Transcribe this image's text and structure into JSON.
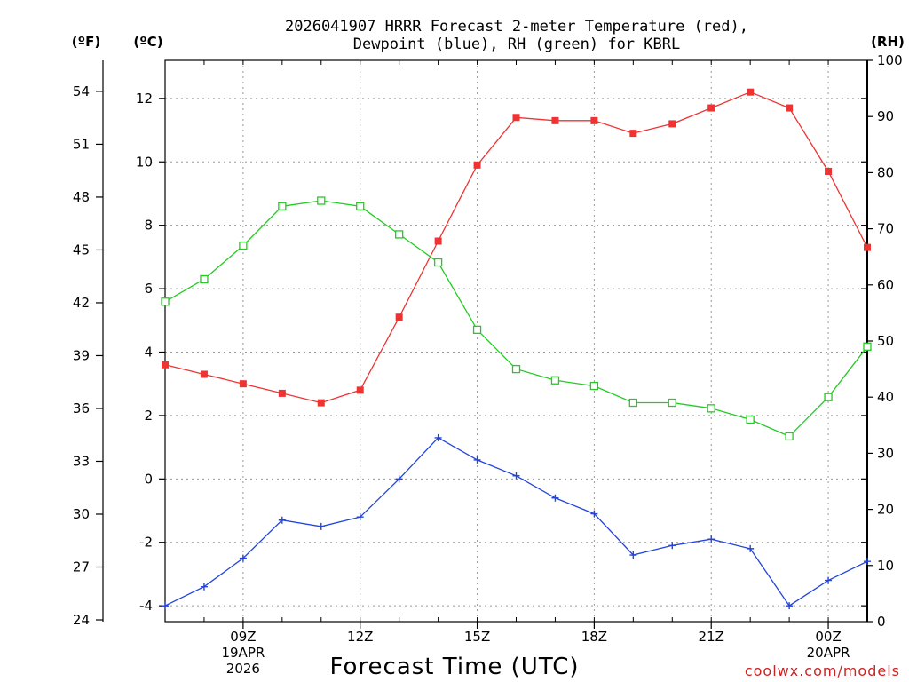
{
  "chart_data": {
    "type": "line",
    "title_line1": "2026041907 HRRR Forecast 2-meter Temperature (red),",
    "title_line2": "Dewpoint (blue), RH (green) for KBRL",
    "xlabel": "Forecast Time (UTC)",
    "credit": "coolwx.com/models",
    "units": {
      "fahrenheit": "(ºF)",
      "celsius": "(ºC)",
      "rh": "(RH)"
    },
    "x_hours": [
      7,
      8,
      9,
      10,
      11,
      12,
      13,
      14,
      15,
      16,
      17,
      18,
      19,
      20,
      21,
      22,
      23,
      24,
      25
    ],
    "x_range": [
      7,
      25
    ],
    "y_celsius_range": [
      -4.5,
      13.2
    ],
    "y_rh_range": [
      0,
      100
    ],
    "x_ticks": [
      {
        "hour": 9,
        "lines": [
          "09Z",
          "19APR",
          "2026"
        ]
      },
      {
        "hour": 12,
        "lines": [
          "12Z"
        ]
      },
      {
        "hour": 15,
        "lines": [
          "15Z"
        ]
      },
      {
        "hour": 18,
        "lines": [
          "18Z"
        ]
      },
      {
        "hour": 21,
        "lines": [
          "21Z"
        ]
      },
      {
        "hour": 24,
        "lines": [
          "00Z",
          "20APR"
        ]
      }
    ],
    "celsius_ticks": [
      "-4",
      "-2",
      "0",
      "2",
      "4",
      "6",
      "8",
      "10",
      "12"
    ],
    "fahrenheit_ticks": [
      "24",
      "27",
      "30",
      "33",
      "36",
      "39",
      "42",
      "45",
      "48",
      "51",
      "54"
    ],
    "rh_ticks": [
      "0",
      "10",
      "20",
      "30",
      "40",
      "50",
      "60",
      "70",
      "80",
      "90",
      "100"
    ],
    "series": [
      {
        "name": "Temperature",
        "unit": "C",
        "color": "#ee3333",
        "marker": "filled-square",
        "values": [
          3.6,
          3.3,
          3.0,
          2.7,
          2.4,
          2.8,
          5.1,
          7.5,
          9.9,
          11.4,
          11.3,
          11.3,
          10.9,
          11.2,
          11.7,
          12.2,
          11.7,
          9.7,
          7.3
        ]
      },
      {
        "name": "Dewpoint",
        "unit": "C",
        "color": "#2244dd",
        "marker": "plus",
        "values": [
          -4.0,
          -3.4,
          -2.5,
          -1.3,
          -1.5,
          -1.2,
          0.0,
          1.3,
          0.6,
          0.1,
          -0.6,
          -1.1,
          -2.4,
          -2.1,
          -1.9,
          -2.2,
          -4.0,
          -3.2,
          -2.6
        ]
      },
      {
        "name": "RH",
        "unit": "%",
        "color": "#22cc22",
        "marker": "open-square",
        "values": [
          57,
          61,
          67,
          74,
          75,
          74,
          69,
          64,
          52,
          45,
          43,
          42,
          39,
          39,
          38,
          36,
          33,
          40,
          49
        ]
      }
    ]
  }
}
